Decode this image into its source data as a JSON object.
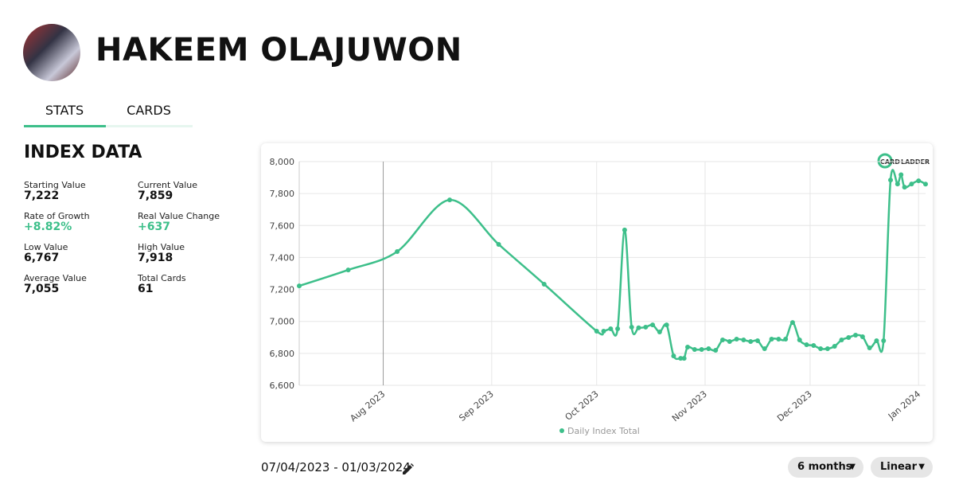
{
  "header": {
    "name": "HAKEEM OLAJUWON"
  },
  "tabs": [
    "STATS",
    "CARDS"
  ],
  "section_title": "INDEX DATA",
  "stats": [
    {
      "label": "Starting Value",
      "value": "7,222"
    },
    {
      "label": "Current Value",
      "value": "7,859"
    },
    {
      "label": "Rate of Growth",
      "value": "+8.82%"
    },
    {
      "label": "Real Value Change",
      "value": "+637"
    },
    {
      "label": "Low Value",
      "value": "6,767"
    },
    {
      "label": "High Value",
      "value": "7,918"
    },
    {
      "label": "Average Value",
      "value": "7,055"
    },
    {
      "label": "Total Cards",
      "value": "61"
    }
  ],
  "date_range": "07/04/2023 - 01/03/2024",
  "controls": [
    "6 months",
    "Linear"
  ],
  "logo": [
    "CARD",
    "LADDER"
  ],
  "chart_data": {
    "type": "line",
    "x": [
      "2023-07-08",
      "2023-07-22",
      "2023-08-05",
      "2023-08-20",
      "2023-09-03",
      "2023-09-16",
      "2023-10-01",
      "2023-10-03",
      "2023-10-05",
      "2023-10-07",
      "2023-10-09",
      "2023-10-11",
      "2023-10-13",
      "2023-10-15",
      "2023-10-17",
      "2023-10-19",
      "2023-10-21",
      "2023-10-23",
      "2023-10-25",
      "2023-10-26",
      "2023-10-27",
      "2023-10-29",
      "2023-10-31",
      "2023-11-02",
      "2023-11-04",
      "2023-11-06",
      "2023-11-08",
      "2023-11-10",
      "2023-11-12",
      "2023-11-14",
      "2023-11-16",
      "2023-11-18",
      "2023-11-20",
      "2023-11-22",
      "2023-11-24",
      "2023-11-26",
      "2023-11-28",
      "2023-11-30",
      "2023-12-02",
      "2023-12-04",
      "2023-12-06",
      "2023-12-08",
      "2023-12-10",
      "2023-12-12",
      "2023-12-14",
      "2023-12-16",
      "2023-12-18",
      "2023-12-20",
      "2023-12-22",
      "2023-12-24",
      "2023-12-26",
      "2023-12-27",
      "2023-12-28",
      "2023-12-30",
      "2024-01-01",
      "2024-01-03"
    ],
    "series": [
      {
        "name": "Daily Index Total",
        "color": "#3dbf8a",
        "values": [
          7222,
          7322,
          7437,
          7760,
          7482,
          7233,
          6939,
          6939,
          6954,
          6954,
          7572,
          6964,
          6960,
          6964,
          6978,
          6934,
          6978,
          6784,
          6769,
          6769,
          6839,
          6824,
          6824,
          6829,
          6819,
          6884,
          6874,
          6889,
          6884,
          6874,
          6879,
          6829,
          6889,
          6889,
          6889,
          6993,
          6884,
          6854,
          6849,
          6829,
          6829,
          6844,
          6884,
          6899,
          6914,
          6904,
          6834,
          6879,
          6879,
          7885,
          7860,
          7918,
          7840,
          7860,
          7880,
          7859
        ]
      }
    ],
    "xlim": [
      "2023-07-08",
      "2024-01-03"
    ],
    "xticks": [
      {
        "value": "2023-08",
        "label": "Aug 2023"
      },
      {
        "value": "2023-09",
        "label": "Sep 2023"
      },
      {
        "value": "2023-10",
        "label": "Oct 2023"
      },
      {
        "value": "2023-11",
        "label": "Nov 2023"
      },
      {
        "value": "2023-12",
        "label": "Dec 2023"
      },
      {
        "value": "2024-01",
        "label": "Jan 2024"
      }
    ],
    "ylim": [
      6600,
      8000
    ],
    "yticks": [
      {
        "value": 6600,
        "label": "6,600"
      },
      {
        "value": 6800,
        "label": "6,800"
      },
      {
        "value": 7000,
        "label": "7,000"
      },
      {
        "value": 7200,
        "label": "7,200"
      },
      {
        "value": 7400,
        "label": "7,400"
      },
      {
        "value": 7600,
        "label": "7,600"
      },
      {
        "value": 7800,
        "label": "7,800"
      },
      {
        "value": 8000,
        "label": "8,000"
      }
    ],
    "grid": true,
    "legend": "bottom"
  }
}
